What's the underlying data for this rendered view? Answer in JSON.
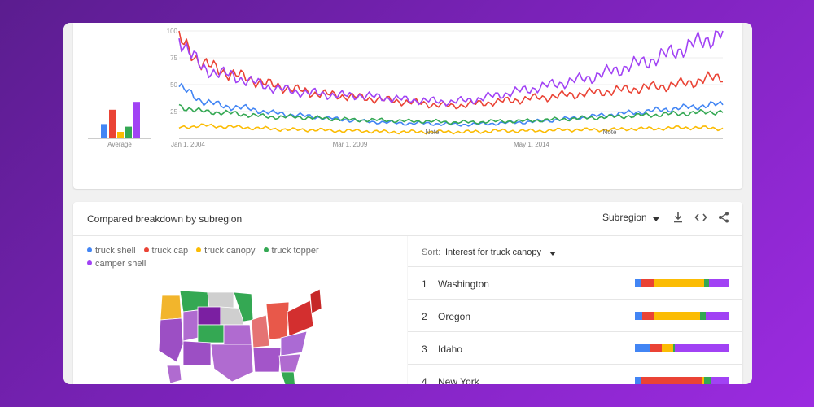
{
  "colors": {
    "truck_shell": "#4285f4",
    "truck_cap": "#ea4335",
    "truck_canopy": "#fbbc04",
    "truck_topper": "#34a853",
    "camper_shell": "#a142f4"
  },
  "chart_data": {
    "type": "line",
    "y_ticks": [
      "100",
      "75",
      "50",
      "25"
    ],
    "ylim": [
      0,
      100
    ],
    "x_labels": [
      "Jan 1, 2004",
      "Mar 1, 2009",
      "May 1, 2014"
    ],
    "notes": [
      "Note",
      "Note"
    ],
    "average": {
      "label": "Average",
      "values": [
        22,
        44,
        10,
        18,
        56
      ]
    },
    "series": [
      {
        "name": "truck shell",
        "values": [
          48,
          35,
          30,
          28,
          24,
          22,
          20,
          18,
          16,
          15,
          14,
          14,
          13,
          13,
          14,
          15,
          16,
          18,
          20,
          22,
          24,
          26,
          28,
          30,
          32
        ]
      },
      {
        "name": "truck cap",
        "values": [
          92,
          70,
          62,
          56,
          50,
          46,
          42,
          40,
          38,
          36,
          34,
          32,
          30,
          32,
          34,
          36,
          38,
          40,
          42,
          44,
          46,
          48,
          50,
          54,
          58
        ]
      },
      {
        "name": "truck canopy",
        "values": [
          10,
          12,
          11,
          10,
          9,
          8,
          8,
          7,
          7,
          6,
          6,
          6,
          6,
          6,
          7,
          7,
          7,
          8,
          8,
          8,
          9,
          9,
          10,
          10,
          9
        ]
      },
      {
        "name": "truck topper",
        "values": [
          30,
          25,
          24,
          22,
          20,
          20,
          19,
          18,
          17,
          17,
          16,
          16,
          15,
          15,
          16,
          16,
          17,
          18,
          19,
          20,
          21,
          22,
          23,
          24,
          25
        ]
      },
      {
        "name": "camper shell",
        "values": [
          95,
          65,
          60,
          54,
          48,
          44,
          42,
          40,
          40,
          38,
          36,
          35,
          34,
          36,
          40,
          44,
          48,
          52,
          56,
          62,
          68,
          74,
          82,
          90,
          98
        ]
      }
    ]
  },
  "breakdown": {
    "title": "Compared breakdown by subregion",
    "select_label": "Subregion",
    "legend": [
      {
        "label": "truck shell",
        "color": "#4285f4"
      },
      {
        "label": "truck cap",
        "color": "#ea4335"
      },
      {
        "label": "truck canopy",
        "color": "#fbbc04"
      },
      {
        "label": "truck topper",
        "color": "#34a853"
      },
      {
        "label": "camper shell",
        "color": "#a142f4"
      }
    ],
    "sort_label": "Sort:",
    "sort_value": "Interest for truck canopy",
    "rows": [
      {
        "rank": "1",
        "name": "Washington",
        "shares": [
          7,
          14,
          53,
          5,
          21
        ]
      },
      {
        "rank": "2",
        "name": "Oregon",
        "shares": [
          8,
          12,
          50,
          6,
          24
        ]
      },
      {
        "rank": "3",
        "name": "Idaho",
        "shares": [
          16,
          13,
          12,
          2,
          57
        ]
      },
      {
        "rank": "4",
        "name": "New York",
        "shares": [
          6,
          65,
          3,
          7,
          19
        ]
      }
    ]
  }
}
